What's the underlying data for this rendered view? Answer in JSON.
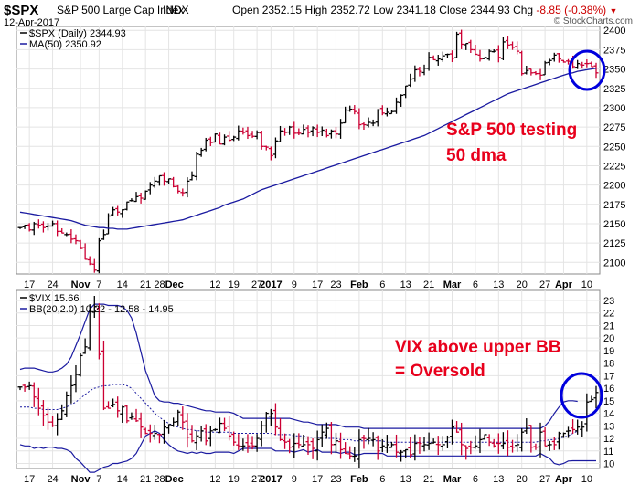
{
  "header": {
    "symbol": "$SPX",
    "name": "S&P 500 Large Cap Index",
    "exchange": "INDX",
    "date": "12-Apr-2017",
    "watermark": "© StockCharts.com",
    "open_label": "Open",
    "open": "2352.15",
    "high_label": "High",
    "high": "2352.72",
    "low_label": "Low",
    "low": "2341.18",
    "close_label": "Close",
    "close": "2344.93",
    "chg_label": "Chg",
    "chg": "-8.85 (-0.38%)"
  },
  "colors": {
    "up_bar": "#000000",
    "down_bar": "#cc0033",
    "ma_line": "#1a1aa0",
    "bb_line": "#1a1aa0",
    "annotation": "#e8001c",
    "circle": "#0000dd",
    "grid": "#e4e4e4"
  },
  "x_axis": {
    "tick_labels": [
      "17",
      "24",
      "Nov",
      "7",
      "14",
      "21",
      "28Dec",
      "12",
      "19",
      "27",
      "2017",
      "9",
      "17",
      "23",
      "Feb",
      "6",
      "13",
      "21",
      "Mar",
      "6",
      "13",
      "20",
      "27",
      "Apr",
      "10"
    ],
    "bold_labels": [
      "Nov",
      "2017",
      "Feb",
      "Mar",
      "Apr"
    ]
  },
  "chart_data": [
    {
      "type": "ohlc",
      "legend": [
        "$SPX (Daily) 2344.93",
        "MA(50) 2350.92"
      ],
      "ylim": [
        2085,
        2405
      ],
      "y_ticks": [
        2100,
        2125,
        2150,
        2175,
        2200,
        2225,
        2250,
        2275,
        2300,
        2325,
        2350,
        2375,
        2400
      ],
      "grid": true,
      "dates": [
        "2016-10-13",
        "2016-10-14",
        "2016-10-17",
        "2016-10-18",
        "2016-10-19",
        "2016-10-20",
        "2016-10-21",
        "2016-10-24",
        "2016-10-25",
        "2016-10-26",
        "2016-10-27",
        "2016-10-28",
        "2016-10-31",
        "2016-11-01",
        "2016-11-02",
        "2016-11-03",
        "2016-11-04",
        "2016-11-07",
        "2016-11-08",
        "2016-11-09",
        "2016-11-10",
        "2016-11-11",
        "2016-11-14",
        "2016-11-15",
        "2016-11-16",
        "2016-11-17",
        "2016-11-18",
        "2016-11-21",
        "2016-11-22",
        "2016-11-23",
        "2016-11-25",
        "2016-11-28",
        "2016-11-29",
        "2016-11-30",
        "2016-12-01",
        "2016-12-02",
        "2016-12-05",
        "2016-12-06",
        "2016-12-07",
        "2016-12-08",
        "2016-12-09",
        "2016-12-12",
        "2016-12-13",
        "2016-12-14",
        "2016-12-15",
        "2016-12-16",
        "2016-12-19",
        "2016-12-20",
        "2016-12-21",
        "2016-12-22",
        "2016-12-23",
        "2016-12-27",
        "2016-12-28",
        "2016-12-29",
        "2016-12-30",
        "2017-01-03",
        "2017-01-04",
        "2017-01-05",
        "2017-01-06",
        "2017-01-09",
        "2017-01-10",
        "2017-01-11",
        "2017-01-12",
        "2017-01-13",
        "2017-01-17",
        "2017-01-18",
        "2017-01-19",
        "2017-01-20",
        "2017-01-23",
        "2017-01-24",
        "2017-01-25",
        "2017-01-26",
        "2017-01-27",
        "2017-01-30",
        "2017-01-31",
        "2017-02-01",
        "2017-02-02",
        "2017-02-03",
        "2017-02-06",
        "2017-02-07",
        "2017-02-08",
        "2017-02-09",
        "2017-02-10",
        "2017-02-13",
        "2017-02-14",
        "2017-02-15",
        "2017-02-16",
        "2017-02-17",
        "2017-02-21",
        "2017-02-22",
        "2017-02-23",
        "2017-02-24",
        "2017-02-27",
        "2017-02-28",
        "2017-03-01",
        "2017-03-02",
        "2017-03-03",
        "2017-03-06",
        "2017-03-07",
        "2017-03-08",
        "2017-03-09",
        "2017-03-10",
        "2017-03-13",
        "2017-03-14",
        "2017-03-15",
        "2017-03-16",
        "2017-03-17",
        "2017-03-20",
        "2017-03-21",
        "2017-03-22",
        "2017-03-23",
        "2017-03-24",
        "2017-03-27",
        "2017-03-28",
        "2017-03-29",
        "2017-03-30",
        "2017-03-31",
        "2017-04-03",
        "2017-04-04",
        "2017-04-05",
        "2017-04-06",
        "2017-04-07",
        "2017-04-10",
        "2017-04-11",
        "2017-04-12"
      ],
      "close": [
        2145,
        2148,
        2142,
        2150,
        2148,
        2145,
        2147,
        2150,
        2140,
        2138,
        2136,
        2130,
        2128,
        2118,
        2104,
        2098,
        2090,
        2128,
        2136,
        2160,
        2168,
        2165,
        2168,
        2178,
        2180,
        2185,
        2183,
        2192,
        2200,
        2205,
        2212,
        2205,
        2208,
        2198,
        2192,
        2190,
        2205,
        2212,
        2240,
        2245,
        2258,
        2255,
        2266,
        2253,
        2262,
        2258,
        2262,
        2270,
        2268,
        2264,
        2263,
        2268,
        2250,
        2249,
        2238,
        2257,
        2270,
        2268,
        2275,
        2267,
        2267,
        2272,
        2268,
        2274,
        2268,
        2271,
        2264,
        2270,
        2266,
        2280,
        2297,
        2298,
        2295,
        2278,
        2278,
        2281,
        2280,
        2297,
        2293,
        2294,
        2295,
        2307,
        2316,
        2328,
        2337,
        2349,
        2347,
        2351,
        2365,
        2362,
        2363,
        2367,
        2369,
        2364,
        2395,
        2382,
        2383,
        2375,
        2369,
        2363,
        2365,
        2373,
        2373,
        2365,
        2385,
        2381,
        2378,
        2373,
        2344,
        2348,
        2345,
        2344,
        2342,
        2358,
        2361,
        2368,
        2363,
        2359,
        2360,
        2353,
        2357,
        2355,
        2357,
        2353,
        2345
      ],
      "ma50": [
        2165,
        2164,
        2163,
        2162,
        2161,
        2160,
        2159,
        2158,
        2157,
        2156,
        2155,
        2154,
        2152,
        2150,
        2148,
        2147,
        2146,
        2145,
        2145,
        2144,
        2144,
        2143,
        2143,
        2143,
        2144,
        2145,
        2146,
        2147,
        2148,
        2149,
        2150,
        2151,
        2152,
        2153,
        2154,
        2155,
        2157,
        2159,
        2161,
        2163,
        2165,
        2167,
        2169,
        2171,
        2174,
        2176,
        2178,
        2180,
        2182,
        2185,
        2188,
        2191,
        2194,
        2196,
        2198,
        2200,
        2202,
        2204,
        2206,
        2208,
        2210,
        2212,
        2214,
        2216,
        2218,
        2220,
        2222,
        2224,
        2226,
        2228,
        2230,
        2232,
        2234,
        2236,
        2238,
        2240,
        2242,
        2244,
        2246,
        2248,
        2250,
        2252,
        2254,
        2256,
        2258,
        2260,
        2262,
        2264,
        2267,
        2270,
        2273,
        2276,
        2279,
        2282,
        2285,
        2288,
        2291,
        2294,
        2297,
        2300,
        2303,
        2306,
        2309,
        2312,
        2315,
        2318,
        2320,
        2322,
        2324,
        2326,
        2328,
        2330,
        2332,
        2334,
        2336,
        2338,
        2340,
        2342,
        2344,
        2345,
        2347,
        2348,
        2349,
        2350,
        2351
      ]
    },
    {
      "type": "ohlc",
      "legend": [
        "$VIX 15.66",
        "BB(20,2.0) 10.22 - 12.58 - 14.95"
      ],
      "ylim": [
        9.6,
        23.8
      ],
      "y_ticks": [
        10,
        11,
        12,
        13,
        14,
        15,
        16,
        17,
        18,
        19,
        20,
        21,
        22,
        23
      ],
      "grid": true,
      "close": [
        16.1,
        16.1,
        16.2,
        15.3,
        14.4,
        13.8,
        13.3,
        13.0,
        13.5,
        14.2,
        15.4,
        16.2,
        17.1,
        18.6,
        19.3,
        22.1,
        22.5,
        18.7,
        14.4,
        14.4,
        14.7,
        14.2,
        14.5,
        13.4,
        13.7,
        13.4,
        12.9,
        12.4,
        12.4,
        12.4,
        12.3,
        12.9,
        13.1,
        13.3,
        14.1,
        13.3,
        12.1,
        11.8,
        12.2,
        12.6,
        11.8,
        12.6,
        12.7,
        13.2,
        12.8,
        12.2,
        11.7,
        11.4,
        11.4,
        11.4,
        11.4,
        12.0,
        13.0,
        14.0,
        14.0,
        12.9,
        11.9,
        11.7,
        11.3,
        11.6,
        11.5,
        11.5,
        11.5,
        11.2,
        11.9,
        12.5,
        12.8,
        11.5,
        11.8,
        11.1,
        10.8,
        10.6,
        10.6,
        11.9,
        11.99,
        12.0,
        11.9,
        11.0,
        11.4,
        11.5,
        11.5,
        10.9,
        10.9,
        11.1,
        10.7,
        11.6,
        11.6,
        11.5,
        11.6,
        11.7,
        11.5,
        11.5,
        12.1,
        12.9,
        12.5,
        11.5,
        11.2,
        11.3,
        11.4,
        11.9,
        12.3,
        11.7,
        11.4,
        11.6,
        11.6,
        11.3,
        11.3,
        11.5,
        12.5,
        12.8,
        11.3,
        11.3,
        12.5,
        11.4,
        11.5,
        11.5,
        12.4,
        12.4,
        12.6,
        12.7,
        12.9,
        12.9,
        14.9,
        15.1,
        15.66
      ],
      "bb_upper": [
        17.5,
        17.6,
        17.6,
        17.6,
        17.5,
        17.4,
        17.3,
        17.3,
        17.4,
        17.6,
        17.9,
        18.5,
        19.4,
        20.3,
        21.3,
        22.3,
        22.7,
        22.7,
        22.7,
        22.6,
        22.6,
        22.6,
        22.5,
        22.2,
        21.6,
        20.4,
        18.9,
        17.4,
        16.4,
        15.4,
        15.0,
        14.9,
        14.9,
        14.8,
        14.8,
        14.7,
        14.6,
        14.5,
        14.4,
        14.3,
        14.2,
        14.2,
        14.1,
        14.1,
        14.1,
        14.1,
        14.0,
        13.8,
        13.6,
        13.6,
        13.6,
        13.6,
        13.6,
        13.6,
        13.6,
        13.6,
        13.6,
        13.6,
        13.6,
        13.5,
        13.4,
        13.3,
        13.3,
        13.2,
        13.1,
        13.1,
        13.1,
        13.1,
        13.1,
        13.0,
        12.9,
        12.9,
        12.9,
        12.9,
        12.8,
        12.8,
        12.8,
        12.8,
        12.8,
        12.8,
        12.8,
        12.8,
        12.8,
        12.8,
        12.8,
        12.8,
        12.8,
        12.8,
        12.8,
        12.8,
        12.8,
        12.8,
        12.8,
        12.8,
        12.8,
        12.8,
        12.8,
        12.8,
        12.8,
        12.8,
        12.8,
        12.8,
        12.8,
        12.8,
        12.8,
        12.8,
        12.8,
        12.8,
        12.8,
        12.8,
        12.8,
        12.8,
        12.8,
        13.0,
        13.4,
        14.0,
        14.5,
        14.9,
        15.0,
        15.0,
        14.95
      ],
      "bb_mid": [
        14.5,
        14.5,
        14.5,
        14.4,
        14.4,
        14.3,
        14.3,
        14.3,
        14.3,
        14.4,
        14.5,
        14.7,
        14.9,
        15.2,
        15.5,
        15.8,
        16.0,
        16.1,
        16.2,
        16.2,
        16.3,
        16.3,
        16.3,
        16.2,
        16.0,
        15.6,
        15.2,
        14.8,
        14.4,
        14.0,
        13.7,
        13.4,
        13.2,
        13.0,
        12.9,
        12.8,
        12.7,
        12.7,
        12.6,
        12.6,
        12.5,
        12.5,
        12.5,
        12.5,
        12.5,
        12.5,
        12.4,
        12.4,
        12.4,
        12.4,
        12.4,
        12.4,
        12.4,
        12.4,
        12.4,
        12.3,
        12.3,
        12.3,
        12.3,
        12.2,
        12.2,
        12.2,
        12.1,
        12.1,
        12.1,
        12.0,
        12.0,
        12.0,
        12.0,
        11.9,
        11.9,
        11.9,
        11.8,
        11.8,
        11.8,
        11.8,
        11.8,
        11.8,
        11.8,
        11.7,
        11.7,
        11.7,
        11.7,
        11.7,
        11.7,
        11.7,
        11.7,
        11.7,
        11.7,
        11.7,
        11.7,
        11.7,
        11.7,
        11.7,
        11.7,
        11.7,
        11.7,
        11.7,
        11.7,
        11.7,
        11.7,
        11.7,
        11.7,
        11.7,
        11.7,
        11.7,
        11.7,
        11.7,
        11.7,
        11.7,
        11.7,
        11.7,
        11.8,
        11.8,
        11.9,
        11.9,
        12.0,
        12.1,
        12.2,
        12.4,
        12.58
      ],
      "bb_lower": [
        11.5,
        11.4,
        11.4,
        11.2,
        11.3,
        11.2,
        11.3,
        11.3,
        11.2,
        11.2,
        11.1,
        10.9,
        10.4,
        10.1,
        9.7,
        9.3,
        9.3,
        9.5,
        9.7,
        9.8,
        10.0,
        10.0,
        10.1,
        10.2,
        10.4,
        10.8,
        11.5,
        12.2,
        12.4,
        12.6,
        12.4,
        11.9,
        11.5,
        11.2,
        11.0,
        10.9,
        10.8,
        10.9,
        10.8,
        10.9,
        10.8,
        10.8,
        10.9,
        10.9,
        10.9,
        10.9,
        10.8,
        11.0,
        11.2,
        11.2,
        11.2,
        11.2,
        11.2,
        11.2,
        11.2,
        11.0,
        11.0,
        11.0,
        11.0,
        10.9,
        11.0,
        11.1,
        10.9,
        11.0,
        11.1,
        10.9,
        10.9,
        10.9,
        10.9,
        10.8,
        10.9,
        10.9,
        10.7,
        10.7,
        10.8,
        10.8,
        10.8,
        10.8,
        10.8,
        10.6,
        10.6,
        10.6,
        10.6,
        10.6,
        10.6,
        10.6,
        10.6,
        10.6,
        10.6,
        10.6,
        10.6,
        10.6,
        10.6,
        10.6,
        10.6,
        10.6,
        10.6,
        10.6,
        10.6,
        10.6,
        10.6,
        10.6,
        10.6,
        10.6,
        10.6,
        10.6,
        10.6,
        10.6,
        10.6,
        10.6,
        10.6,
        10.6,
        10.8,
        10.6,
        10.4,
        10.0,
        9.9,
        10.0,
        10.2,
        10.22,
        10.22,
        10.22,
        10.22,
        10.22,
        10.22
      ]
    }
  ],
  "annotations": {
    "spx": [
      "S&P 500 testing",
      "50 dma"
    ],
    "vix": [
      "VIX above upper BB",
      "= Oversold"
    ]
  }
}
